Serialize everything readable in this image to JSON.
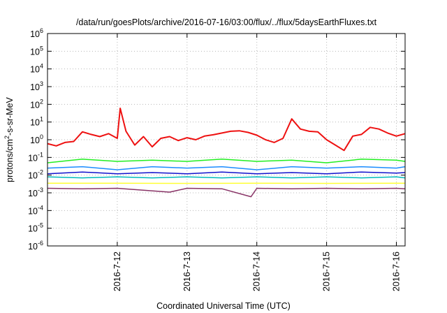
{
  "chart_data": {
    "type": "line",
    "title": "/data/run/goesPlots/archive/2016-07-16/03:00/flux/../flux/5daysEarthFluxes.txt",
    "xlabel": "Coordinated Universal Time (UTC)",
    "ylabel": {
      "base": "protons/cm",
      "sup": "2",
      "rest": "-s-sr-MeV"
    },
    "yscale": "log",
    "ylim": [
      1e-06,
      1000000.0
    ],
    "xlim": [
      "2016-07-11 00:00",
      "2016-07-16 03:00"
    ],
    "grid": true,
    "x_ticks": [
      {
        "label": "2016-7-12",
        "value": "2016-07-12"
      },
      {
        "label": "2016-7-13",
        "value": "2016-07-13"
      },
      {
        "label": "2016-7-14",
        "value": "2016-07-14"
      },
      {
        "label": "2016-7-15",
        "value": "2016-07-15"
      },
      {
        "label": "2016-7-16",
        "value": "2016-07-16"
      }
    ],
    "y_ticks": [
      {
        "base": "10",
        "exp": "-6",
        "value": 1e-06
      },
      {
        "base": "10",
        "exp": "-5",
        "value": 1e-05
      },
      {
        "base": "10",
        "exp": "-4",
        "value": 0.0001
      },
      {
        "base": "10",
        "exp": "-3",
        "value": 0.001
      },
      {
        "base": "10",
        "exp": "-2",
        "value": 0.01
      },
      {
        "base": "10",
        "exp": "-1",
        "value": 0.1
      },
      {
        "base": "10",
        "exp": "0",
        "value": 1
      },
      {
        "base": "10",
        "exp": "1",
        "value": 10
      },
      {
        "base": "10",
        "exp": "2",
        "value": 100
      },
      {
        "base": "10",
        "exp": "3",
        "value": 1000
      },
      {
        "base": "10",
        "exp": "4",
        "value": 10000
      },
      {
        "base": "10",
        "exp": "5",
        "value": 100000
      },
      {
        "base": "10",
        "exp": "6",
        "value": 1000000
      }
    ],
    "series": [
      {
        "color": "#ee1111",
        "width": 2,
        "points": [
          [
            "2016-07-11 00:00",
            0.6
          ],
          [
            "2016-07-11 03:00",
            0.45
          ],
          [
            "2016-07-11 06:00",
            0.7
          ],
          [
            "2016-07-11 09:00",
            0.8
          ],
          [
            "2016-07-11 12:00",
            2.8
          ],
          [
            "2016-07-11 15:00",
            2.0
          ],
          [
            "2016-07-11 18:00",
            1.5
          ],
          [
            "2016-07-11 21:00",
            2.2
          ],
          [
            "2016-07-12 00:00",
            1.2
          ],
          [
            "2016-07-12 01:00",
            60
          ],
          [
            "2016-07-12 03:00",
            3.0
          ],
          [
            "2016-07-12 06:00",
            0.5
          ],
          [
            "2016-07-12 09:00",
            1.5
          ],
          [
            "2016-07-12 12:00",
            0.4
          ],
          [
            "2016-07-12 15:00",
            1.2
          ],
          [
            "2016-07-12 18:00",
            1.5
          ],
          [
            "2016-07-12 21:00",
            0.9
          ],
          [
            "2016-07-13 00:00",
            1.3
          ],
          [
            "2016-07-13 03:00",
            1.0
          ],
          [
            "2016-07-13 06:00",
            1.6
          ],
          [
            "2016-07-13 09:00",
            1.9
          ],
          [
            "2016-07-13 12:00",
            2.4
          ],
          [
            "2016-07-13 15:00",
            3.0
          ],
          [
            "2016-07-13 18:00",
            3.2
          ],
          [
            "2016-07-13 21:00",
            2.6
          ],
          [
            "2016-07-14 00:00",
            1.8
          ],
          [
            "2016-07-14 03:00",
            1.0
          ],
          [
            "2016-07-14 06:00",
            0.7
          ],
          [
            "2016-07-14 09:00",
            1.2
          ],
          [
            "2016-07-14 12:00",
            15
          ],
          [
            "2016-07-14 15:00",
            4.0
          ],
          [
            "2016-07-14 18:00",
            3.0
          ],
          [
            "2016-07-14 21:00",
            2.8
          ],
          [
            "2016-07-15 00:00",
            1.0
          ],
          [
            "2016-07-15 03:00",
            0.5
          ],
          [
            "2016-07-15 06:00",
            0.25
          ],
          [
            "2016-07-15 09:00",
            1.6
          ],
          [
            "2016-07-15 12:00",
            2.0
          ],
          [
            "2016-07-15 15:00",
            5.0
          ],
          [
            "2016-07-15 18:00",
            4.0
          ],
          [
            "2016-07-15 21:00",
            2.4
          ],
          [
            "2016-07-16 00:00",
            1.6
          ],
          [
            "2016-07-16 03:00",
            2.2
          ]
        ]
      },
      {
        "color": "#22ee22",
        "width": 1.5,
        "points": [
          [
            "2016-07-11 00:00",
            0.05
          ],
          [
            "2016-07-11 12:00",
            0.08
          ],
          [
            "2016-07-12 00:00",
            0.06
          ],
          [
            "2016-07-12 12:00",
            0.07
          ],
          [
            "2016-07-13 00:00",
            0.06
          ],
          [
            "2016-07-13 12:00",
            0.08
          ],
          [
            "2016-07-14 00:00",
            0.06
          ],
          [
            "2016-07-14 12:00",
            0.07
          ],
          [
            "2016-07-15 00:00",
            0.05
          ],
          [
            "2016-07-15 12:00",
            0.08
          ],
          [
            "2016-07-16 00:00",
            0.07
          ],
          [
            "2016-07-16 03:00",
            0.06
          ]
        ]
      },
      {
        "color": "#1a8cff",
        "width": 1.5,
        "points": [
          [
            "2016-07-11 00:00",
            0.025
          ],
          [
            "2016-07-11 12:00",
            0.03
          ],
          [
            "2016-07-12 00:00",
            0.02
          ],
          [
            "2016-07-12 12:00",
            0.03
          ],
          [
            "2016-07-13 00:00",
            0.025
          ],
          [
            "2016-07-13 12:00",
            0.03
          ],
          [
            "2016-07-14 00:00",
            0.02
          ],
          [
            "2016-07-14 12:00",
            0.03
          ],
          [
            "2016-07-15 00:00",
            0.025
          ],
          [
            "2016-07-15 12:00",
            0.03
          ],
          [
            "2016-07-16 00:00",
            0.025
          ],
          [
            "2016-07-16 03:00",
            0.03
          ]
        ]
      },
      {
        "color": "#1111cc",
        "width": 1.5,
        "points": [
          [
            "2016-07-11 00:00",
            0.012
          ],
          [
            "2016-07-11 12:00",
            0.015
          ],
          [
            "2016-07-12 00:00",
            0.012
          ],
          [
            "2016-07-12 12:00",
            0.014
          ],
          [
            "2016-07-13 00:00",
            0.012
          ],
          [
            "2016-07-13 12:00",
            0.015
          ],
          [
            "2016-07-14 00:00",
            0.012
          ],
          [
            "2016-07-14 12:00",
            0.014
          ],
          [
            "2016-07-15 00:00",
            0.012
          ],
          [
            "2016-07-15 12:00",
            0.015
          ],
          [
            "2016-07-16 00:00",
            0.013
          ],
          [
            "2016-07-16 03:00",
            0.014
          ]
        ]
      },
      {
        "color": "#00bbbb",
        "width": 1.5,
        "points": [
          [
            "2016-07-11 00:00",
            0.008
          ],
          [
            "2016-07-11 12:00",
            0.007
          ],
          [
            "2016-07-12 00:00",
            0.008
          ],
          [
            "2016-07-12 12:00",
            0.007
          ],
          [
            "2016-07-13 00:00",
            0.008
          ],
          [
            "2016-07-13 12:00",
            0.007
          ],
          [
            "2016-07-14 00:00",
            0.008
          ],
          [
            "2016-07-14 12:00",
            0.007
          ],
          [
            "2016-07-15 00:00",
            0.008
          ],
          [
            "2016-07-15 12:00",
            0.007
          ],
          [
            "2016-07-16 00:00",
            0.008
          ],
          [
            "2016-07-16 03:00",
            0.007
          ]
        ]
      },
      {
        "color": "#ffff33",
        "width": 1.5,
        "points": [
          [
            "2016-07-11 00:00",
            0.0035
          ],
          [
            "2016-07-12 00:00",
            0.0035
          ],
          [
            "2016-07-13 00:00",
            0.0034
          ],
          [
            "2016-07-14 00:00",
            0.0035
          ],
          [
            "2016-07-15 00:00",
            0.0034
          ],
          [
            "2016-07-16 00:00",
            0.0035
          ],
          [
            "2016-07-16 03:00",
            0.0035
          ]
        ]
      },
      {
        "color": "#883366",
        "width": 1.5,
        "points": [
          [
            "2016-07-11 00:00",
            0.0018
          ],
          [
            "2016-07-11 12:00",
            0.0017
          ],
          [
            "2016-07-12 00:00",
            0.0018
          ],
          [
            "2016-07-12 18:00",
            0.0011
          ],
          [
            "2016-07-13 00:00",
            0.0018
          ],
          [
            "2016-07-13 12:00",
            0.0017
          ],
          [
            "2016-07-13 22:00",
            0.0006
          ],
          [
            "2016-07-14 00:00",
            0.0018
          ],
          [
            "2016-07-14 12:00",
            0.0017
          ],
          [
            "2016-07-15 00:00",
            0.0018
          ],
          [
            "2016-07-15 12:00",
            0.0017
          ],
          [
            "2016-07-16 00:00",
            0.0018
          ],
          [
            "2016-07-16 03:00",
            0.0017
          ]
        ]
      }
    ]
  }
}
